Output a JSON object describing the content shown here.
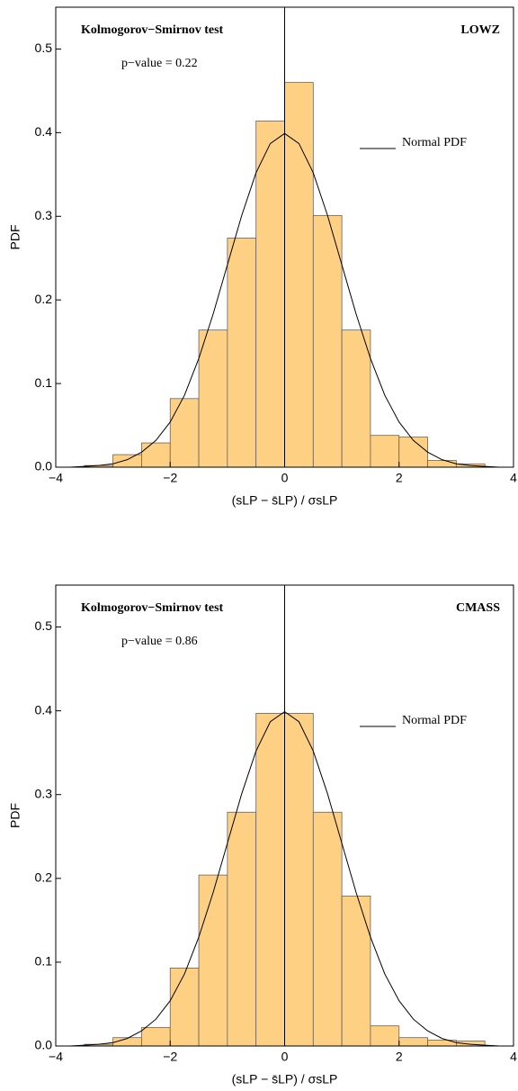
{
  "chart_data": [
    {
      "type": "histogram",
      "annotations": [
        "Kolmogorov−Smirnov test",
        "p−value = 0.22",
        "LOWZ"
      ],
      "xlabel": "(sLP − s̄LP) / σsLP",
      "ylabel": "PDF",
      "bins": [
        -3.5,
        -3,
        -2.5,
        -2,
        -1.5,
        -1,
        -0.5,
        0,
        0.5,
        1,
        1.5,
        2,
        2.5,
        3,
        3.5
      ],
      "values": [
        0.002,
        0.015,
        0.029,
        0.082,
        0.164,
        0.274,
        0.414,
        0.46,
        0.301,
        0.164,
        0.038,
        0.036,
        0.008,
        0.004
      ],
      "color": "#fdd084",
      "series": [
        {
          "name": "Normal PDF",
          "color": "#000000",
          "x": [
            -4,
            -3.75,
            -3.5,
            -3.25,
            -3,
            -2.75,
            -2.5,
            -2.25,
            -2,
            -1.75,
            -1.5,
            -1.25,
            -1,
            -0.75,
            -0.5,
            -0.25,
            0,
            0.25,
            0.5,
            0.75,
            1,
            1.25,
            1.5,
            1.75,
            2,
            2.25,
            2.5,
            2.75,
            3,
            3.25,
            3.5,
            3.75,
            4
          ],
          "values": [
            0,
            0,
            0.001,
            0.002,
            0.004,
            0.009,
            0.018,
            0.032,
            0.054,
            0.086,
            0.13,
            0.183,
            0.242,
            0.301,
            0.352,
            0.387,
            0.399,
            0.387,
            0.352,
            0.301,
            0.242,
            0.183,
            0.13,
            0.086,
            0.054,
            0.032,
            0.018,
            0.009,
            0.004,
            0.002,
            0.001,
            0,
            0
          ]
        }
      ],
      "xlim": [
        -4,
        4
      ],
      "ylim": [
        0,
        0.55
      ],
      "xticks": [
        {
          "value": -4,
          "label": "−4"
        },
        {
          "value": -2,
          "label": "−2"
        },
        0,
        2,
        4
      ],
      "yticks": [
        {
          "value": 0,
          "label": "0.0"
        },
        0.1,
        0.2,
        0.3,
        0.4,
        0.5
      ]
    },
    {
      "type": "histogram",
      "annotations": [
        "Kolmogorov−Smirnov test",
        "p−value = 0.86",
        "CMASS"
      ],
      "xlabel": "(sLP − s̄LP) / σsLP",
      "ylabel": "PDF",
      "bins": [
        -3.5,
        -3,
        -2.5,
        -2,
        -1.5,
        -1,
        -0.5,
        0,
        0.5,
        1,
        1.5,
        2,
        2.5,
        3,
        3.5
      ],
      "values": [
        0.002,
        0.01,
        0.022,
        0.093,
        0.204,
        0.279,
        0.397,
        0.397,
        0.279,
        0.179,
        0.024,
        0.01,
        0.007,
        0.006
      ],
      "color": "#fdd084",
      "series": [
        {
          "name": "Normal PDF",
          "color": "#000000",
          "x": [
            -4,
            -3.75,
            -3.5,
            -3.25,
            -3,
            -2.75,
            -2.5,
            -2.25,
            -2,
            -1.75,
            -1.5,
            -1.25,
            -1,
            -0.75,
            -0.5,
            -0.25,
            0,
            0.25,
            0.5,
            0.75,
            1,
            1.25,
            1.5,
            1.75,
            2,
            2.25,
            2.5,
            2.75,
            3,
            3.25,
            3.5,
            3.75,
            4
          ],
          "values": [
            0,
            0,
            0.001,
            0.002,
            0.004,
            0.009,
            0.018,
            0.032,
            0.054,
            0.086,
            0.13,
            0.183,
            0.242,
            0.301,
            0.352,
            0.387,
            0.399,
            0.387,
            0.352,
            0.301,
            0.242,
            0.183,
            0.13,
            0.086,
            0.054,
            0.032,
            0.018,
            0.009,
            0.004,
            0.002,
            0.001,
            0,
            0
          ]
        }
      ],
      "xlim": [
        -4,
        4
      ],
      "ylim": [
        0,
        0.55
      ],
      "xticks": [
        {
          "value": -4,
          "label": "−4"
        },
        {
          "value": -2,
          "label": "−2"
        },
        0,
        2,
        4
      ],
      "yticks": [
        {
          "value": 0,
          "label": "0.0"
        },
        0.1,
        0.2,
        0.3,
        0.4,
        0.5
      ]
    }
  ]
}
